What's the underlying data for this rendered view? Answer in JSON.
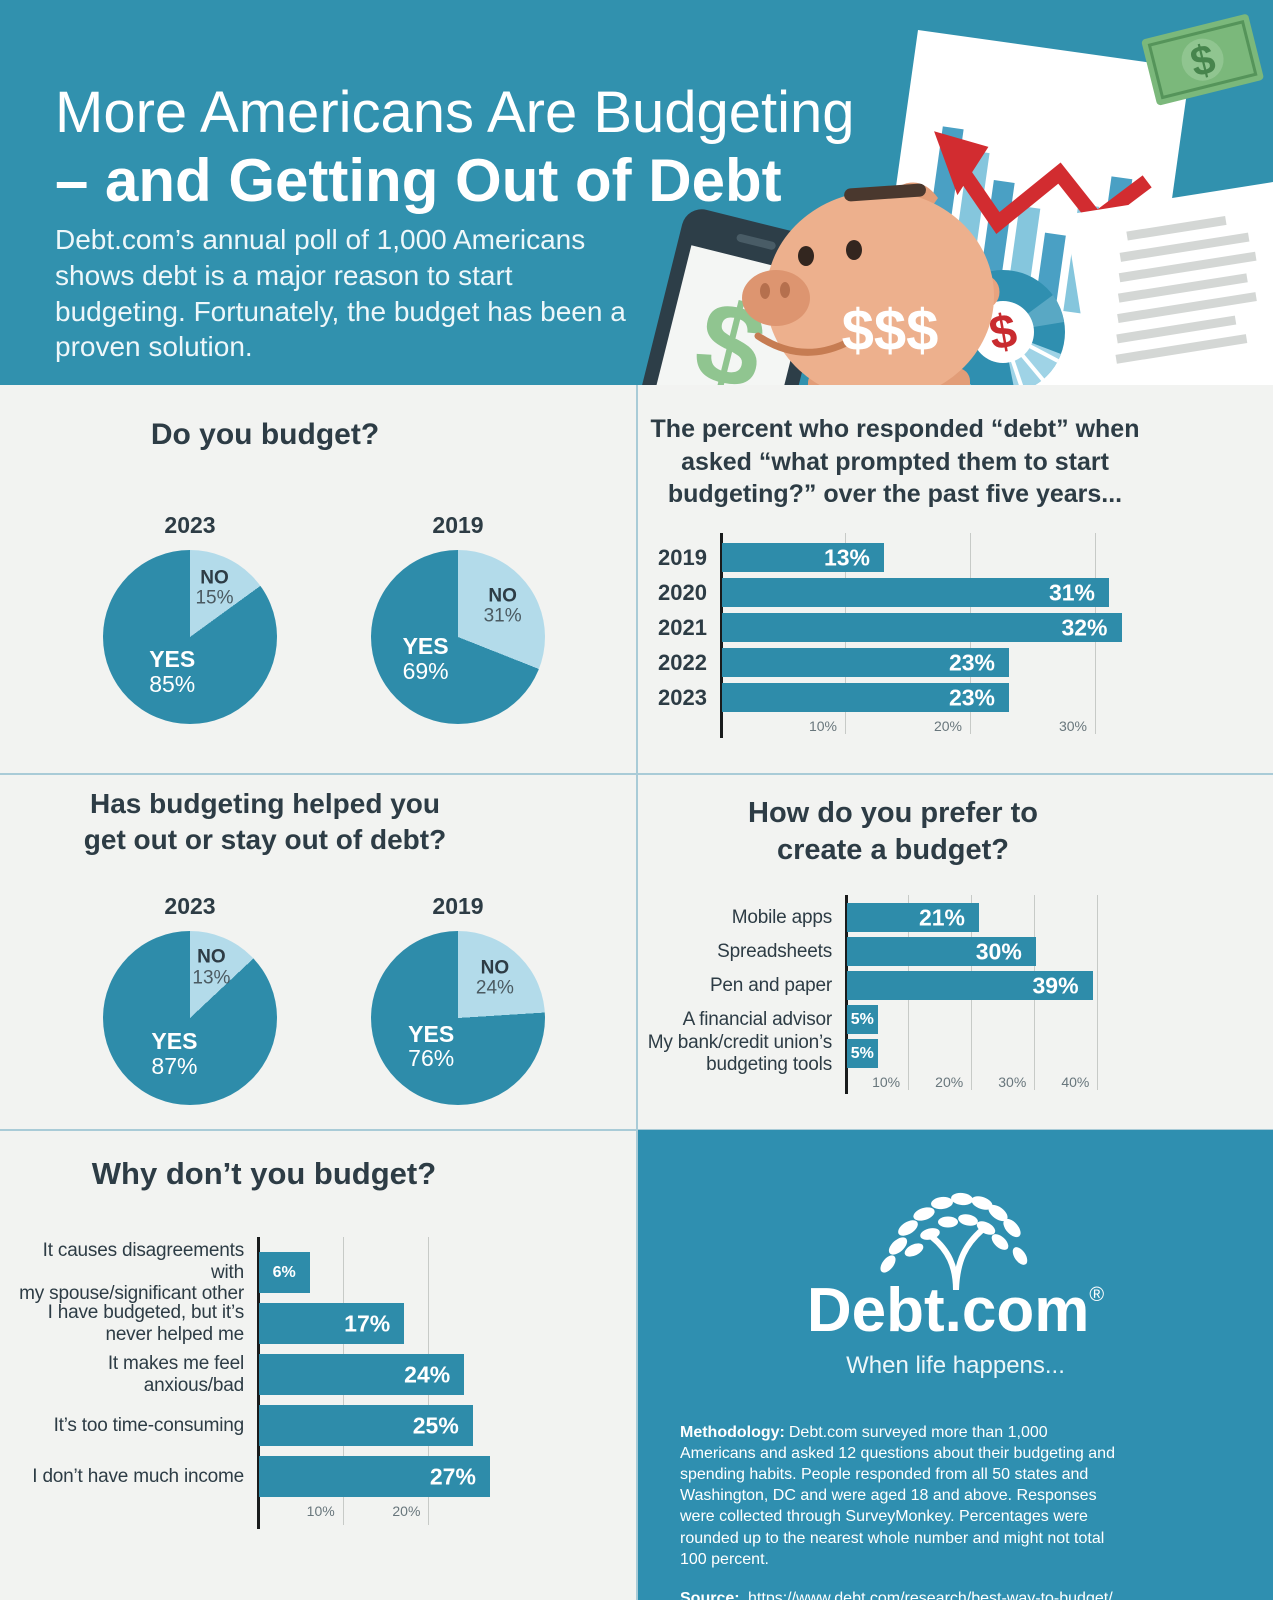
{
  "colors": {
    "header_teal": "#3191ae",
    "accent_teal": "#2e8caa",
    "light_slice": "#b3dbea",
    "background": "#f2f3f1",
    "navy_text": "#2d3c45",
    "divider": "#a9cbd7",
    "footer_teal": "#2f8fb0",
    "red": "#d22c30",
    "white": "#ffffff"
  },
  "header": {
    "title_line1": "More Americans Are Budgeting",
    "title_line2": "– and Getting Out of Debt",
    "subtitle": "Debt.com’s annual poll of 1,000 Americans shows debt is a major reason to start budgeting. Fortunately, the budget has been a proven solution.",
    "illustration": {
      "icons": [
        "smartphone-dollar-icon",
        "piggy-bank-icon",
        "bar-chart-arrow-icon",
        "pie-chart-dollar-icon",
        "dollar-bill-icon",
        "pen-icon",
        "paper-document-icon"
      ],
      "piggy_text": "$$$",
      "phone_dollar": "$",
      "bill_dollar": "$",
      "donut_dollar": "$"
    }
  },
  "chart_data": [
    {
      "id": "do-you-budget",
      "type": "pie",
      "title": "Do you budget?",
      "pies": [
        {
          "year": "2023",
          "slices": [
            {
              "label": "YES",
              "value": 85
            },
            {
              "label": "NO",
              "value": 15
            }
          ]
        },
        {
          "year": "2019",
          "slices": [
            {
              "label": "YES",
              "value": 69
            },
            {
              "label": "NO",
              "value": 31
            }
          ]
        }
      ]
    },
    {
      "id": "debt-prompt",
      "type": "bar",
      "orientation": "horizontal",
      "title": "The percent who responded “debt” when\nasked “what prompted them to start\nbudgeting?” over the past five years...",
      "categories": [
        "2019",
        "2020",
        "2021",
        "2022",
        "2023"
      ],
      "values": [
        13,
        31,
        32,
        23,
        23
      ],
      "xlim": [
        0,
        34
      ],
      "ticks": [
        10,
        20,
        30
      ],
      "grid": true
    },
    {
      "id": "helped-debt",
      "type": "pie",
      "title": "Has budgeting helped you\nget out or stay out of debt?",
      "pies": [
        {
          "year": "2023",
          "slices": [
            {
              "label": "YES",
              "value": 87
            },
            {
              "label": "NO",
              "value": 13
            }
          ]
        },
        {
          "year": "2019",
          "slices": [
            {
              "label": "YES",
              "value": 76
            },
            {
              "label": "NO",
              "value": 24
            }
          ]
        }
      ]
    },
    {
      "id": "prefer-budget",
      "type": "bar",
      "orientation": "horizontal",
      "title": "How do you prefer to\ncreate a budget?",
      "categories": [
        "Mobile apps",
        "Spreadsheets",
        "Pen and paper",
        "A financial advisor",
        "My bank/credit union’s\nbudgeting tools"
      ],
      "values": [
        21,
        30,
        39,
        5,
        5
      ],
      "xlim": [
        0,
        42
      ],
      "ticks": [
        10,
        20,
        30,
        40
      ],
      "grid": true
    },
    {
      "id": "why-not-budget",
      "type": "bar",
      "orientation": "horizontal",
      "title": "Why don’t you budget?",
      "categories": [
        "It causes disagreements with\nmy spouse/significant other",
        "I have budgeted, but it’s\nnever helped me",
        "It makes me feel anxious/bad",
        "It’s too time-consuming",
        "I don’t have much income"
      ],
      "values": [
        6,
        17,
        24,
        25,
        27
      ],
      "xlim": [
        0,
        28
      ],
      "ticks": [
        10,
        20
      ],
      "grid": true
    }
  ],
  "footer": {
    "logo_text": "Debt.com",
    "logo_reg": "®",
    "tagline": "When life happens...",
    "methodology_label": "Methodology:",
    "methodology_text": "Debt.com surveyed more than 1,000 Americans and asked 12 questions about their budgeting and spending habits. People responded from all 50 states and Washington, DC and were aged 18 and above. Responses were collected through SurveyMonkey. Percentages were rounded up to the nearest whole number and might not total 100 percent.",
    "source_label": "Source:",
    "source_url": "https://www.debt.com/research/best-way-to-budget/"
  }
}
